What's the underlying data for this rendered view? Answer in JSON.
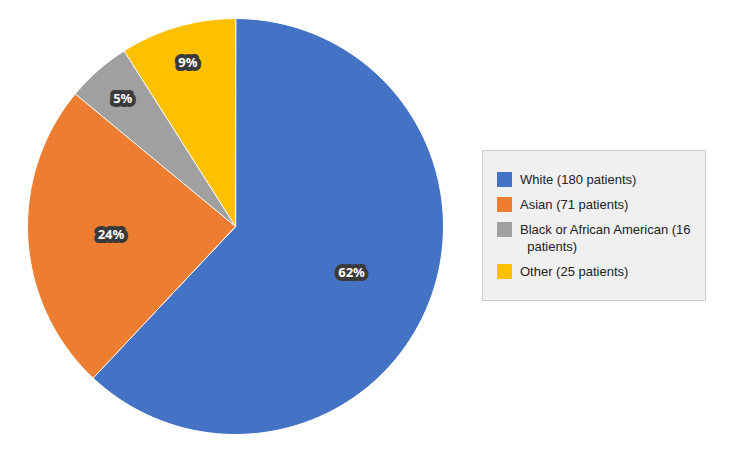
{
  "chart_data": {
    "type": "pie",
    "categories": [
      "White (180 patients)",
      "Asian (71 patients)",
      "Black or African American (16\n  patients)",
      "Other (25 patients)"
    ],
    "values": [
      62,
      24,
      5,
      9
    ],
    "value_labels": [
      "62%",
      "24%",
      "5%",
      "9%"
    ],
    "colors": [
      "#4472C4",
      "#ED7D31",
      "#A0A0A0",
      "#FFC000"
    ],
    "data_labels": true,
    "legend": "right"
  }
}
